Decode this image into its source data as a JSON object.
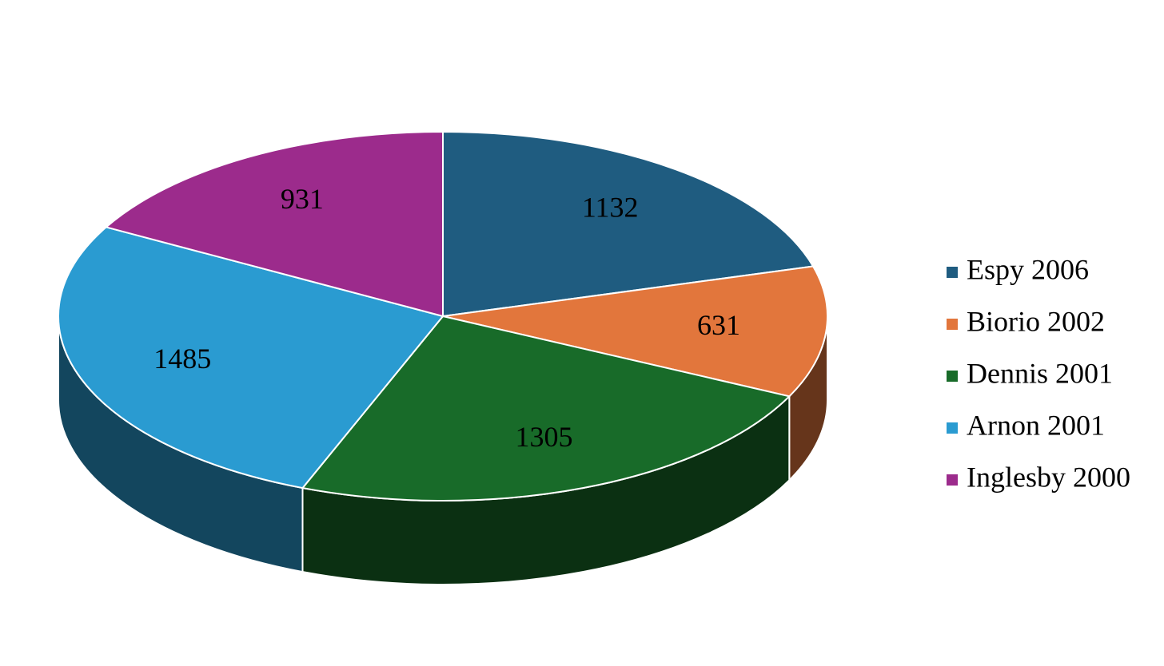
{
  "chart_data": {
    "type": "pie",
    "categories": [
      "Espy 2006",
      "Biorio 2002",
      "Dennis 2001",
      "Arnon 2001",
      "Inglesby 2000"
    ],
    "values": [
      1132,
      631,
      1305,
      1485,
      931
    ],
    "colors": [
      "#1f5c80",
      "#e2763c",
      "#186b29",
      "#2a9bd1",
      "#9c2b8c"
    ],
    "legend": "right"
  }
}
